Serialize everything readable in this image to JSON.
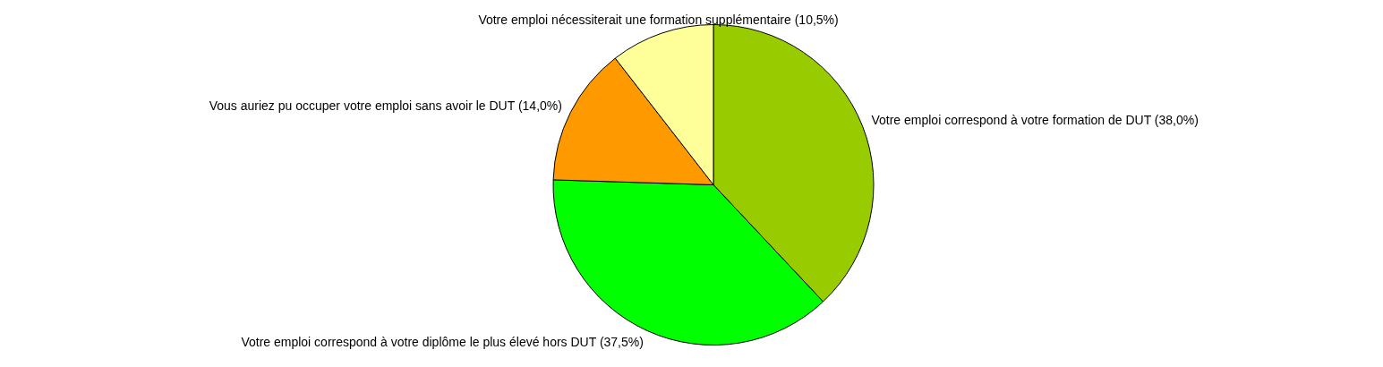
{
  "chart_data": {
    "type": "pie",
    "categories": [
      "Votre emploi correspond à votre formation de DUT",
      "Votre emploi correspond à votre diplôme le plus élevé hors DUT",
      "Vous auriez pu occuper votre emploi sans avoir le DUT",
      "Votre emploi nécessiterait une formation supplémentaire"
    ],
    "values": [
      38.0,
      37.5,
      14.0,
      10.5
    ],
    "value_labels": [
      "(38,0%)",
      "(37,5%)",
      "(14,0%)",
      "(10,5%)"
    ],
    "colors": [
      "#99cc00",
      "#00ff00",
      "#ff9900",
      "#ffff99"
    ],
    "legend": false
  }
}
